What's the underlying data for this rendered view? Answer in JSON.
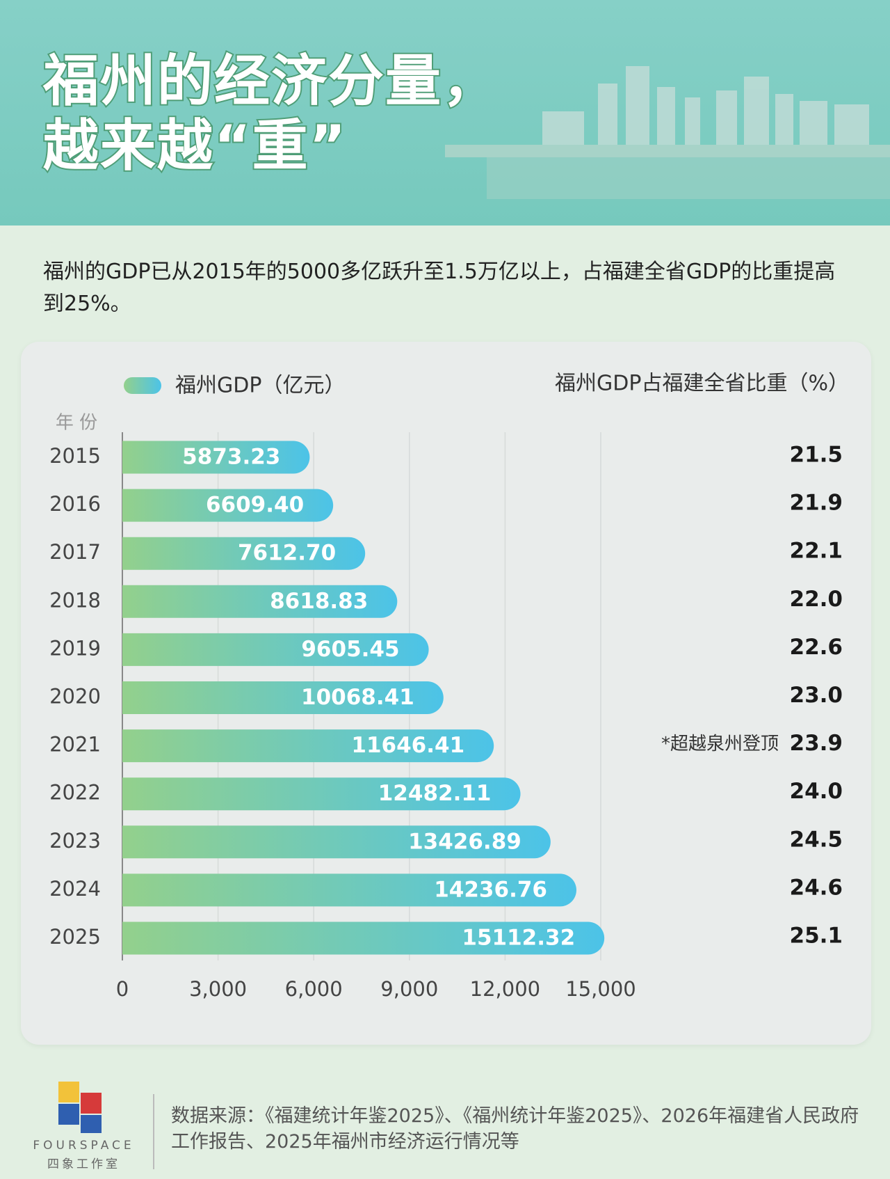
{
  "header": {
    "title_lines": [
      "福州的经济分量，",
      "越来越“重”"
    ]
  },
  "chart_data": {
    "type": "bar",
    "orientation": "horizontal",
    "subtitle": "福州的GDP已从2015年的5000多亿跃升至1.5万亿以上，占福建全省GDP的比重提高到25%。",
    "y_axis_title": "年 份",
    "categories": [
      "2015",
      "2016",
      "2017",
      "2018",
      "2019",
      "2020",
      "2021",
      "2022",
      "2023",
      "2024",
      "2025"
    ],
    "series": [
      {
        "name": "福州GDP（亿元）",
        "color": [
          "#93d08c",
          "#4cc3e8"
        ],
        "values": [
          5873.23,
          6609.4,
          7612.7,
          8618.83,
          9605.45,
          10068.41,
          11646.41,
          12482.11,
          13426.89,
          14236.76,
          15112.32
        ],
        "value_labels": [
          "5873.23",
          "6609.40",
          "7612.70",
          "8618.83",
          "9605.45",
          "10068.41",
          "11646.41",
          "12482.11",
          "13426.89",
          "14236.76",
          "15112.32"
        ]
      },
      {
        "name": "福州GDP占福建全省比重（%）",
        "color": "#1a1a1a",
        "values": [
          21.5,
          21.9,
          22.1,
          22.0,
          22.6,
          23.0,
          23.9,
          24.0,
          24.5,
          24.6,
          25.1
        ],
        "value_labels": [
          "21.5",
          "21.9",
          "22.1",
          "22.0",
          "22.6",
          "23.0",
          "23.9",
          "24.0",
          "24.5",
          "24.6",
          "25.1"
        ]
      }
    ],
    "annotations": [
      {
        "category": "2021",
        "text": "*超越泉州登顶"
      }
    ],
    "xlim": [
      0,
      15000
    ],
    "xticks": [
      0,
      {
        "value": 3000,
        "label": "3,000"
      },
      {
        "value": 6000,
        "label": "6,000"
      },
      {
        "value": 9000,
        "label": "9,000"
      },
      {
        "value": 12000,
        "label": "12,000"
      },
      {
        "value": 15000,
        "label": "15,000"
      }
    ],
    "grid": true
  },
  "footer": {
    "logo_text": "FOURSPACE",
    "logo_subtext": "四象工作室",
    "source": "数据来源：《福建统计年鉴2025》、《福州统计年鉴2025》、2026年福建省人民政府工作报告、2025年福州市经济运行情况等"
  }
}
